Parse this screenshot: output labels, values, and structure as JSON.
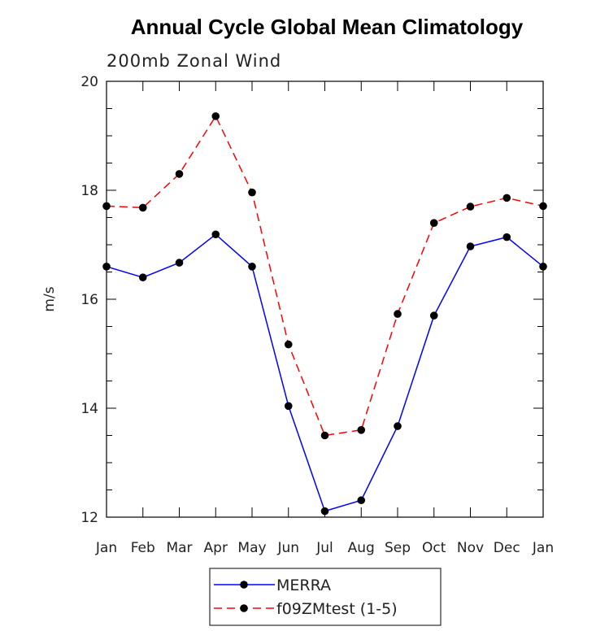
{
  "chart_data": {
    "type": "line",
    "title": "Annual Cycle Global Mean Climatology",
    "subtitle": "200mb Zonal Wind",
    "xlabel": "",
    "ylabel": "m/s",
    "categories": [
      "Jan",
      "Feb",
      "Mar",
      "Apr",
      "May",
      "Jun",
      "Jul",
      "Aug",
      "Sep",
      "Oct",
      "Nov",
      "Dec",
      "Jan"
    ],
    "ylim": [
      12,
      20
    ],
    "yticks": [
      12,
      14,
      16,
      18,
      20
    ],
    "grid": false,
    "legend_position": "bottom",
    "series": [
      {
        "name": "MERRA",
        "color": "#0000ff",
        "line_style": "solid",
        "marker": "dot",
        "values": [
          16.6,
          16.4,
          16.67,
          17.19,
          16.6,
          14.04,
          12.11,
          12.31,
          13.67,
          15.7,
          16.97,
          17.14,
          16.6
        ]
      },
      {
        "name": "f09ZMtest (1-5)",
        "color": "#ff0000",
        "line_style": "dashed",
        "marker": "dot",
        "values": [
          17.71,
          17.68,
          18.3,
          19.36,
          17.96,
          15.17,
          13.5,
          13.6,
          15.73,
          17.4,
          17.7,
          17.86,
          17.71
        ]
      }
    ]
  }
}
